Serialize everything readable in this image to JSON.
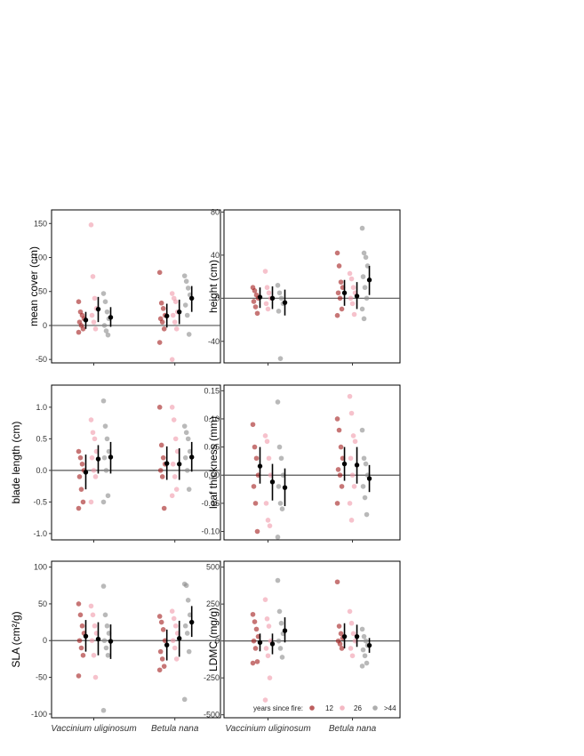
{
  "colors": {
    "g12": "#a11a1a",
    "g26": "#f09aaa",
    "g44": "#8a8a8a",
    "mean": "#000000",
    "zero_line": "#555555"
  },
  "legend": {
    "title": "years since fire:",
    "items": [
      {
        "label": "12",
        "color": "#a11a1a"
      },
      {
        "label": "26",
        "color": "#f09aaa"
      },
      {
        "label": ">44",
        "color": "#8a8a8a"
      }
    ]
  },
  "chart_data": [
    {
      "type": "scatter",
      "ylabel": "mean cover (cm)",
      "ylim": [
        -55,
        170
      ],
      "yticks": [
        "-50",
        "0",
        "50",
        "100",
        "150"
      ],
      "ytick_values": [
        -50,
        0,
        50,
        100,
        150
      ],
      "categories": [
        "Vaccinium uliginosum",
        "Betula nana"
      ],
      "show_xlabels": false,
      "groups": [
        "12",
        "26",
        ">44"
      ],
      "series": [
        {
          "category": 0,
          "group": 0,
          "points": [
            35,
            20,
            15,
            10,
            5,
            0,
            -5,
            -10
          ],
          "mean": 8,
          "ci": [
            -5,
            20
          ]
        },
        {
          "category": 0,
          "group": 1,
          "points": [
            148,
            72,
            40,
            25,
            15,
            5,
            -5
          ],
          "mean": 24,
          "ci": [
            5,
            42
          ]
        },
        {
          "category": 0,
          "group": 2,
          "points": [
            47,
            35,
            20,
            10,
            0,
            -8,
            -14
          ],
          "mean": 12,
          "ci": [
            -2,
            27
          ]
        },
        {
          "category": 1,
          "group": 0,
          "points": [
            78,
            33,
            25,
            15,
            10,
            5,
            -5,
            -25
          ],
          "mean": 14,
          "ci": [
            -3,
            32
          ]
        },
        {
          "category": 1,
          "group": 1,
          "points": [
            47,
            40,
            35,
            20,
            15,
            5,
            -5,
            -50
          ],
          "mean": 20,
          "ci": [
            2,
            38
          ]
        },
        {
          "category": 1,
          "group": 2,
          "points": [
            73,
            65,
            55,
            45,
            30,
            15,
            -13
          ],
          "mean": 40,
          "ci": [
            20,
            58
          ]
        }
      ]
    },
    {
      "type": "scatter",
      "ylabel": "height (cm)",
      "ylim": [
        -60,
        82
      ],
      "yticks": [
        "-40",
        "0",
        "40",
        "80"
      ],
      "ytick_values": [
        -40,
        0,
        40,
        80
      ],
      "categories": [
        "Vaccinium uliginosum",
        "Betula nana"
      ],
      "show_xlabels": false,
      "groups": [
        "12",
        "26",
        ">44"
      ],
      "series": [
        {
          "category": 0,
          "group": 0,
          "points": [
            10,
            7,
            3,
            0,
            -3,
            -8,
            -14
          ],
          "mean": 1,
          "ci": [
            -9,
            10
          ]
        },
        {
          "category": 0,
          "group": 1,
          "points": [
            25,
            10,
            5,
            0,
            -5,
            -10
          ],
          "mean": 0,
          "ci": [
            -10,
            11
          ]
        },
        {
          "category": 0,
          "group": 2,
          "points": [
            12,
            5,
            0,
            -5,
            -12,
            -56
          ],
          "mean": -4,
          "ci": [
            -16,
            8
          ]
        },
        {
          "category": 1,
          "group": 0,
          "points": [
            42,
            30,
            15,
            10,
            5,
            0,
            -10,
            -16
          ],
          "mean": 5,
          "ci": [
            -7,
            17
          ]
        },
        {
          "category": 1,
          "group": 1,
          "points": [
            23,
            18,
            10,
            5,
            0,
            -5,
            -15
          ],
          "mean": 2,
          "ci": [
            -10,
            15
          ]
        },
        {
          "category": 1,
          "group": 2,
          "points": [
            65,
            42,
            38,
            30,
            20,
            10,
            0,
            -10,
            -19
          ],
          "mean": 17,
          "ci": [
            3,
            30
          ]
        }
      ]
    },
    {
      "type": "scatter",
      "ylabel": "blade length (cm)",
      "ylim": [
        -1.1,
        1.35
      ],
      "yticks": [
        "-1.0",
        "-0.5",
        "0.0",
        "0.5",
        "1.0"
      ],
      "ytick_values": [
        -1.0,
        -0.5,
        0.0,
        0.5,
        1.0
      ],
      "categories": [
        "Vaccinium uliginosum",
        "Betula nana"
      ],
      "show_xlabels": false,
      "groups": [
        "12",
        "26",
        ">44"
      ],
      "series": [
        {
          "category": 0,
          "group": 0,
          "points": [
            0.3,
            0.2,
            0.1,
            0,
            -0.1,
            -0.3,
            -0.5,
            -0.6
          ],
          "mean": -0.03,
          "ci": [
            -0.3,
            0.25
          ]
        },
        {
          "category": 0,
          "group": 1,
          "points": [
            0.8,
            0.6,
            0.5,
            0.3,
            0.2,
            0,
            -0.1,
            -0.5
          ],
          "mean": 0.18,
          "ci": [
            -0.05,
            0.4
          ]
        },
        {
          "category": 0,
          "group": 2,
          "points": [
            1.1,
            0.7,
            0.5,
            0.3,
            0.2,
            0,
            -0.4,
            -0.5
          ],
          "mean": 0.21,
          "ci": [
            -0.05,
            0.45
          ]
        },
        {
          "category": 1,
          "group": 0,
          "points": [
            1.0,
            0.4,
            0.2,
            0.1,
            0,
            -0.1,
            -0.6
          ],
          "mean": 0.11,
          "ci": [
            -0.15,
            0.38
          ]
        },
        {
          "category": 1,
          "group": 1,
          "points": [
            1.0,
            0.8,
            0.5,
            0.3,
            0.1,
            -0.1,
            -0.3,
            -0.4
          ],
          "mean": 0.1,
          "ci": [
            -0.15,
            0.35
          ]
        },
        {
          "category": 1,
          "group": 2,
          "points": [
            0.7,
            0.6,
            0.5,
            0.3,
            0.2,
            0,
            -0.3
          ],
          "mean": 0.21,
          "ci": [
            -0.02,
            0.45
          ]
        }
      ]
    },
    {
      "type": "scatter",
      "ylabel": "leaf thickness (mm)",
      "ylim": [
        -0.115,
        0.16
      ],
      "yticks": [
        "-0.10",
        "-0.05",
        "0.00",
        "0.05",
        "0.10",
        "0.15"
      ],
      "ytick_values": [
        -0.1,
        -0.05,
        0.0,
        0.05,
        0.1,
        0.15
      ],
      "categories": [
        "Vaccinium uliginosum",
        "Betula nana"
      ],
      "show_xlabels": false,
      "groups": [
        "12",
        "26",
        ">44"
      ],
      "series": [
        {
          "category": 0,
          "group": 0,
          "points": [
            0.09,
            0.05,
            0.03,
            0.0,
            -0.02,
            -0.05,
            -0.1
          ],
          "mean": 0.016,
          "ci": [
            -0.015,
            0.05
          ]
        },
        {
          "category": 0,
          "group": 1,
          "points": [
            0.07,
            0.06,
            0.03,
            0.0,
            -0.05,
            -0.08,
            -0.09
          ],
          "mean": -0.012,
          "ci": [
            -0.045,
            0.02
          ]
        },
        {
          "category": 0,
          "group": 2,
          "points": [
            0.13,
            0.05,
            0.03,
            0.0,
            -0.02,
            -0.05,
            -0.06,
            -0.11
          ],
          "mean": -0.022,
          "ci": [
            -0.055,
            0.012
          ]
        },
        {
          "category": 1,
          "group": 0,
          "points": [
            0.1,
            0.08,
            0.05,
            0.03,
            0.01,
            0.0,
            -0.02,
            -0.05
          ],
          "mean": 0.02,
          "ci": [
            -0.01,
            0.05
          ]
        },
        {
          "category": 1,
          "group": 1,
          "points": [
            0.14,
            0.11,
            0.07,
            0.06,
            0.03,
            0.0,
            -0.02,
            -0.05,
            -0.08
          ],
          "mean": 0.018,
          "ci": [
            -0.015,
            0.05
          ]
        },
        {
          "category": 1,
          "group": 2,
          "points": [
            0.08,
            0.03,
            0.02,
            0.0,
            -0.02,
            -0.04,
            -0.07
          ],
          "mean": -0.006,
          "ci": [
            -0.03,
            0.018
          ]
        }
      ]
    },
    {
      "type": "scatter",
      "ylabel": "SLA (cm²/g)",
      "ylim": [
        -105,
        108
      ],
      "yticks": [
        "-100",
        "-50",
        "0",
        "50",
        "100"
      ],
      "ytick_values": [
        -100,
        -50,
        0,
        50,
        100
      ],
      "categories": [
        "Vaccinium uliginosum",
        "Betula nana"
      ],
      "show_xlabels": true,
      "groups": [
        "12",
        "26",
        ">44"
      ],
      "series": [
        {
          "category": 0,
          "group": 0,
          "points": [
            50,
            35,
            20,
            10,
            0,
            -10,
            -20,
            -48
          ],
          "mean": 6,
          "ci": [
            -15,
            28
          ]
        },
        {
          "category": 0,
          "group": 1,
          "points": [
            47,
            35,
            20,
            10,
            0,
            -20,
            -50
          ],
          "mean": 2,
          "ci": [
            -20,
            25
          ]
        },
        {
          "category": 0,
          "group": 2,
          "points": [
            74,
            35,
            20,
            10,
            0,
            -10,
            -20,
            -95
          ],
          "mean": -1,
          "ci": [
            -25,
            22
          ]
        },
        {
          "category": 1,
          "group": 0,
          "points": [
            33,
            25,
            15,
            0,
            -15,
            -25,
            -35,
            -40
          ],
          "mean": -6,
          "ci": [
            -27,
            15
          ]
        },
        {
          "category": 1,
          "group": 1,
          "points": [
            40,
            30,
            20,
            10,
            0,
            -10,
            -25
          ],
          "mean": 3,
          "ci": [
            -22,
            27
          ]
        },
        {
          "category": 1,
          "group": 2,
          "points": [
            77,
            75,
            55,
            35,
            20,
            10,
            -15,
            -80
          ],
          "mean": 25,
          "ci": [
            5,
            47
          ]
        }
      ]
    },
    {
      "type": "scatter",
      "ylabel": "LDMC (mg/g)",
      "ylim": [
        -520,
        540
      ],
      "yticks": [
        "-500",
        "-250",
        "0",
        "250",
        "500"
      ],
      "ytick_values": [
        -500,
        -250,
        0,
        250,
        500
      ],
      "categories": [
        "Vaccinium uliginosum",
        "Betula nana"
      ],
      "show_xlabels": true,
      "groups": [
        "12",
        "26",
        ">44"
      ],
      "series": [
        {
          "category": 0,
          "group": 0,
          "points": [
            180,
            130,
            80,
            30,
            0,
            -50,
            -140,
            -150
          ],
          "mean": -10,
          "ci": [
            -70,
            50
          ]
        },
        {
          "category": 0,
          "group": 1,
          "points": [
            280,
            150,
            100,
            0,
            -50,
            -100,
            -250,
            -400
          ],
          "mean": -20,
          "ci": [
            -90,
            50
          ]
        },
        {
          "category": 0,
          "group": 2,
          "points": [
            410,
            200,
            120,
            50,
            0,
            -50,
            -110
          ],
          "mean": 70,
          "ci": [
            -10,
            160
          ]
        },
        {
          "category": 1,
          "group": 0,
          "points": [
            400,
            100,
            50,
            20,
            0,
            -20,
            -50
          ],
          "mean": 30,
          "ci": [
            -50,
            120
          ]
        },
        {
          "category": 1,
          "group": 1,
          "points": [
            200,
            120,
            50,
            0,
            -50,
            -100
          ],
          "mean": 30,
          "ci": [
            -40,
            110
          ]
        },
        {
          "category": 1,
          "group": 2,
          "points": [
            80,
            30,
            0,
            -30,
            -60,
            -100,
            -150,
            -170
          ],
          "mean": -30,
          "ci": [
            -80,
            20
          ]
        }
      ]
    }
  ]
}
